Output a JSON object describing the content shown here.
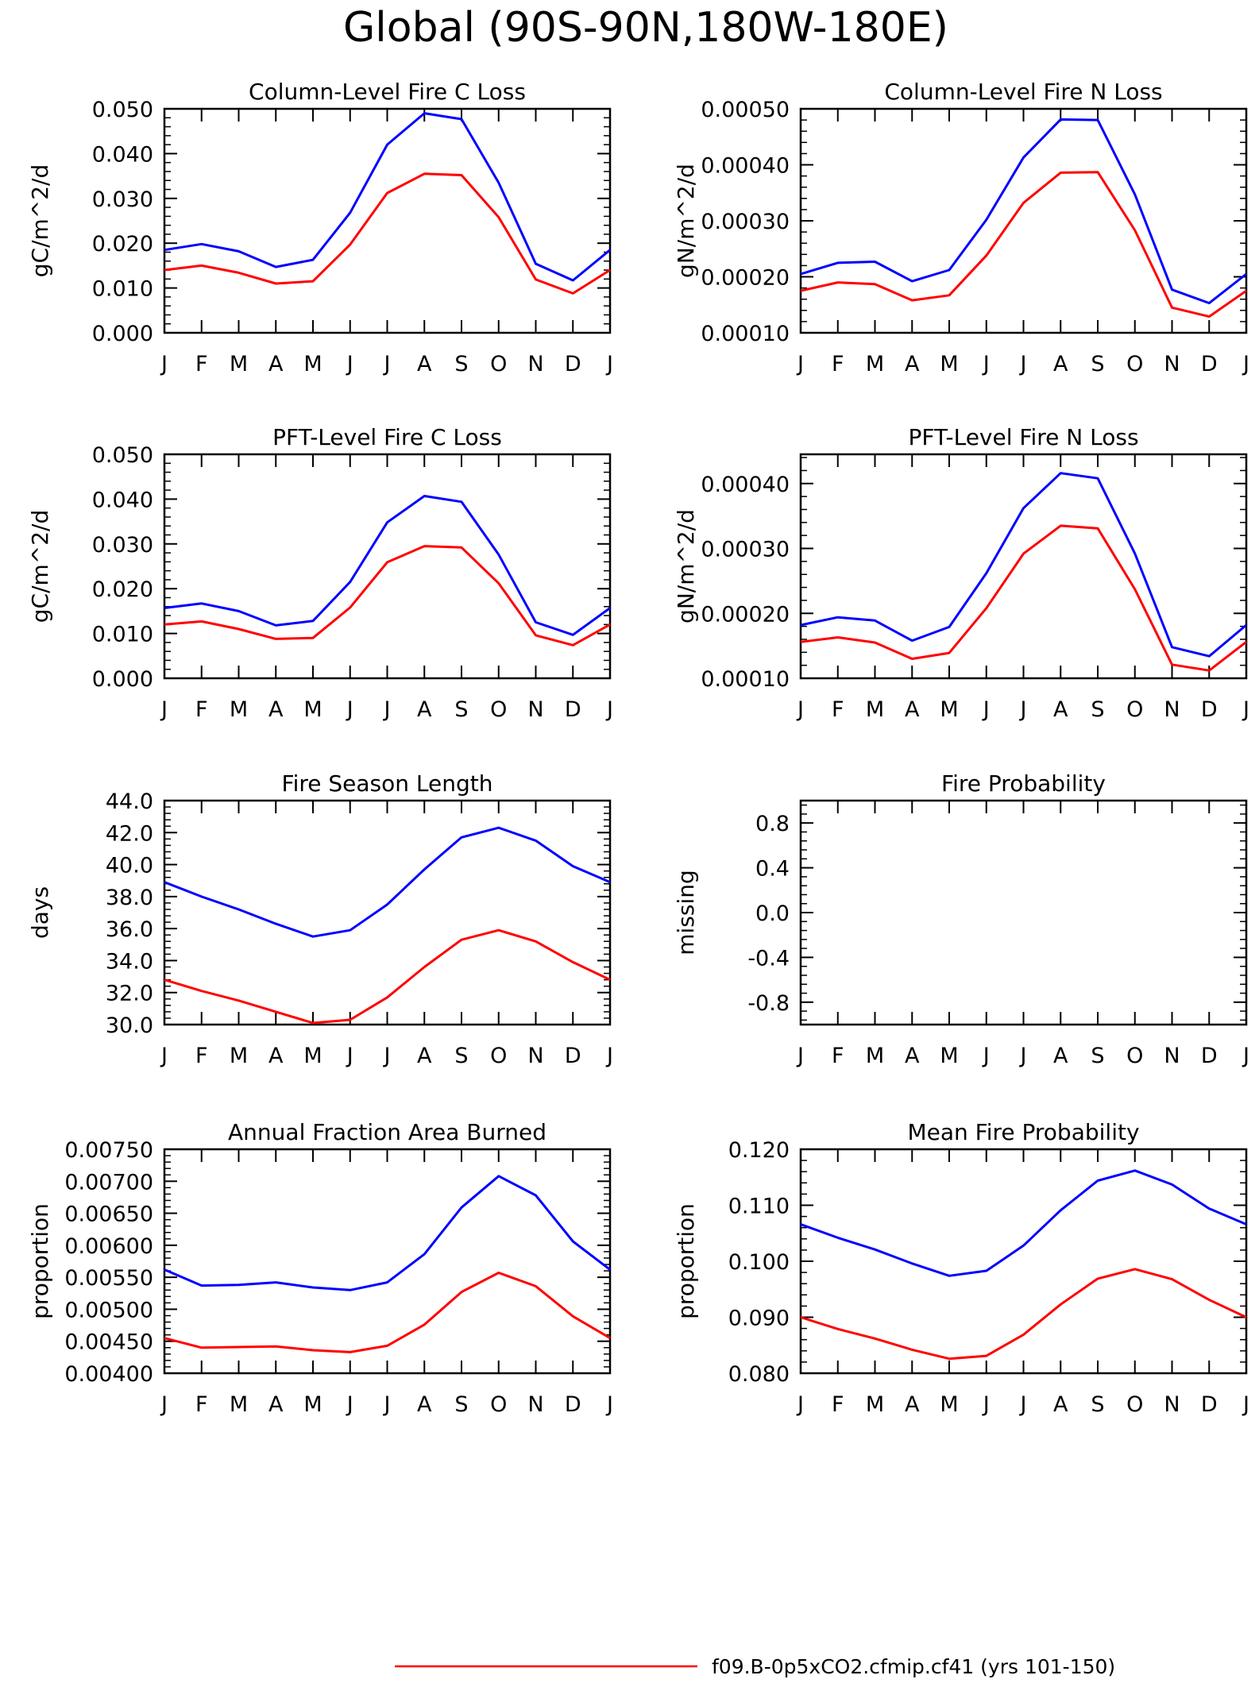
{
  "page_title": "Global (90S-90N,180W-180E)",
  "colors": {
    "case_line": "#ff0000",
    "ref_line": "#0000ff",
    "axis": "#000000"
  },
  "legend": {
    "label": "f09.B-0p5xCO2.cfmip.cf41 (yrs 101-150)",
    "color": "#ff0000"
  },
  "chart_data": [
    {
      "type": "line",
      "title": "Column-Level Fire C Loss",
      "ylabel": "gC/m^2/d",
      "categories": [
        "J",
        "F",
        "M",
        "A",
        "M",
        "J",
        "J",
        "A",
        "S",
        "O",
        "N",
        "D",
        "J"
      ],
      "ylim": [
        0,
        0.05
      ],
      "yticks": [
        "0.000",
        "0.010",
        "0.020",
        "0.030",
        "0.040",
        "0.050"
      ],
      "series": [
        {
          "color": "#0000ff",
          "values": [
            0.0185,
            0.0198,
            0.0182,
            0.0147,
            0.0163,
            0.0268,
            0.042,
            0.049,
            0.0477,
            0.0335,
            0.0154,
            0.0117,
            0.0185
          ]
        },
        {
          "color": "#ff0000",
          "values": [
            0.014,
            0.015,
            0.0134,
            0.011,
            0.0115,
            0.0197,
            0.0312,
            0.0355,
            0.0352,
            0.0258,
            0.0119,
            0.0088,
            0.014
          ]
        }
      ]
    },
    {
      "type": "line",
      "title": "Column-Level Fire N Loss",
      "ylabel": "gN/m^2/d",
      "categories": [
        "J",
        "F",
        "M",
        "A",
        "M",
        "J",
        "J",
        "A",
        "S",
        "O",
        "N",
        "D",
        "J"
      ],
      "ylim": [
        0.0001,
        0.0005
      ],
      "yticks": [
        "0.00010",
        "0.00020",
        "0.00030",
        "0.00040",
        "0.00050"
      ],
      "series": [
        {
          "color": "#0000ff",
          "values": [
            0.000205,
            0.000225,
            0.000227,
            0.000192,
            0.000212,
            0.000302,
            0.000413,
            0.000481,
            0.00048,
            0.000347,
            0.000177,
            0.000153,
            0.000205
          ]
        },
        {
          "color": "#ff0000",
          "values": [
            0.000175,
            0.00019,
            0.000187,
            0.000158,
            0.000167,
            0.000238,
            0.000332,
            0.000386,
            0.000387,
            0.000283,
            0.000145,
            0.000129,
            0.000175
          ]
        }
      ]
    },
    {
      "type": "line",
      "title": "PFT-Level Fire C Loss",
      "ylabel": "gC/m^2/d",
      "categories": [
        "J",
        "F",
        "M",
        "A",
        "M",
        "J",
        "J",
        "A",
        "S",
        "O",
        "N",
        "D",
        "J"
      ],
      "ylim": [
        0,
        0.05
      ],
      "yticks": [
        "0.000",
        "0.010",
        "0.020",
        "0.030",
        "0.040",
        "0.050"
      ],
      "series": [
        {
          "color": "#0000ff",
          "values": [
            0.0157,
            0.0167,
            0.015,
            0.0118,
            0.0128,
            0.0215,
            0.0348,
            0.0407,
            0.0394,
            0.0276,
            0.0125,
            0.0097,
            0.0157
          ]
        },
        {
          "color": "#ff0000",
          "values": [
            0.012,
            0.0127,
            0.011,
            0.0088,
            0.009,
            0.0158,
            0.0259,
            0.0295,
            0.0292,
            0.0212,
            0.0096,
            0.0074,
            0.012
          ]
        }
      ]
    },
    {
      "type": "line",
      "title": "PFT-Level Fire N Loss",
      "ylabel": "gN/m^2/d",
      "categories": [
        "J",
        "F",
        "M",
        "A",
        "M",
        "J",
        "J",
        "A",
        "S",
        "O",
        "N",
        "D",
        "J"
      ],
      "ylim": [
        0.0001,
        0.000445
      ],
      "yticks": [
        "0.00010",
        "0.00020",
        "0.00030",
        "0.00040"
      ],
      "series": [
        {
          "color": "#0000ff",
          "values": [
            0.000182,
            0.000194,
            0.000189,
            0.000158,
            0.000179,
            0.000262,
            0.000362,
            0.000416,
            0.000408,
            0.000292,
            0.000148,
            0.000134,
            0.000182
          ]
        },
        {
          "color": "#ff0000",
          "values": [
            0.000156,
            0.000163,
            0.000155,
            0.00013,
            0.000139,
            0.000208,
            0.000292,
            0.000335,
            0.000331,
            0.000237,
            0.000121,
            0.000112,
            0.000156
          ]
        }
      ]
    },
    {
      "type": "line",
      "title": "Fire Season Length",
      "ylabel": "days",
      "categories": [
        "J",
        "F",
        "M",
        "A",
        "M",
        "J",
        "J",
        "A",
        "S",
        "O",
        "N",
        "D",
        "J"
      ],
      "ylim": [
        30,
        44
      ],
      "yticks": [
        "30.0",
        "32.0",
        "34.0",
        "36.0",
        "38.0",
        "40.0",
        "42.0",
        "44.0"
      ],
      "series": [
        {
          "color": "#0000ff",
          "values": [
            38.9,
            38.0,
            37.2,
            36.3,
            35.5,
            35.9,
            37.5,
            39.7,
            41.7,
            42.3,
            41.5,
            39.9,
            38.9
          ]
        },
        {
          "color": "#ff0000",
          "values": [
            32.8,
            32.1,
            31.5,
            30.8,
            30.1,
            30.3,
            31.7,
            33.6,
            35.3,
            35.9,
            35.2,
            33.9,
            32.8
          ]
        }
      ]
    },
    {
      "type": "line",
      "title": "Fire Probability",
      "ylabel": "missing",
      "categories": [
        "J",
        "F",
        "M",
        "A",
        "M",
        "J",
        "J",
        "A",
        "S",
        "O",
        "N",
        "D",
        "J"
      ],
      "ylim": [
        -1,
        1
      ],
      "yticks": [
        "-0.8",
        "-0.4",
        "0.0",
        "0.4",
        "0.8"
      ],
      "series": []
    },
    {
      "type": "line",
      "title": "Annual Fraction Area Burned",
      "ylabel": "proportion",
      "categories": [
        "J",
        "F",
        "M",
        "A",
        "M",
        "J",
        "J",
        "A",
        "S",
        "O",
        "N",
        "D",
        "J"
      ],
      "ylim": [
        0.004,
        0.0075
      ],
      "yticks": [
        "0.00400",
        "0.00450",
        "0.00500",
        "0.00550",
        "0.00600",
        "0.00650",
        "0.00700",
        "0.00750"
      ],
      "series": [
        {
          "color": "#0000ff",
          "values": [
            0.00562,
            0.00537,
            0.00538,
            0.00542,
            0.00534,
            0.0053,
            0.00542,
            0.00586,
            0.00659,
            0.00708,
            0.00678,
            0.00606,
            0.00562
          ]
        },
        {
          "color": "#ff0000",
          "values": [
            0.00455,
            0.0044,
            0.00441,
            0.00442,
            0.00436,
            0.00433,
            0.00443,
            0.00476,
            0.00527,
            0.00557,
            0.00536,
            0.00489,
            0.00455
          ]
        }
      ]
    },
    {
      "type": "line",
      "title": "Mean Fire Probability",
      "ylabel": "proportion",
      "categories": [
        "J",
        "F",
        "M",
        "A",
        "M",
        "J",
        "J",
        "A",
        "S",
        "O",
        "N",
        "D",
        "J"
      ],
      "ylim": [
        0.08,
        0.12
      ],
      "yticks": [
        "0.080",
        "0.090",
        "0.100",
        "0.110",
        "0.120"
      ],
      "series": [
        {
          "color": "#0000ff",
          "values": [
            0.1066,
            0.1042,
            0.1021,
            0.0996,
            0.0974,
            0.0983,
            0.1028,
            0.1091,
            0.1144,
            0.1162,
            0.1137,
            0.1094,
            0.1066
          ]
        },
        {
          "color": "#ff0000",
          "values": [
            0.09,
            0.0879,
            0.0862,
            0.0842,
            0.0826,
            0.0831,
            0.0869,
            0.0923,
            0.0969,
            0.0986,
            0.0968,
            0.0931,
            0.09
          ]
        }
      ]
    }
  ]
}
